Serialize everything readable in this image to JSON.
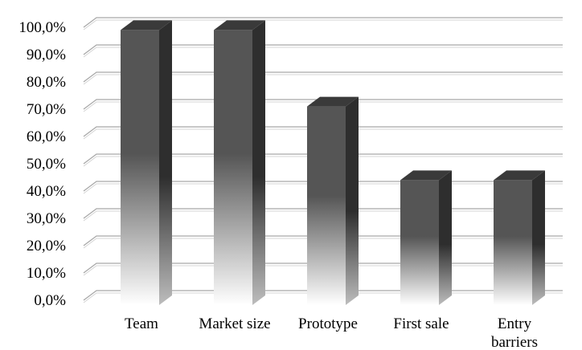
{
  "chart_data": {
    "type": "bar",
    "title": "",
    "xlabel": "",
    "ylabel": "",
    "categories": [
      [
        "Team"
      ],
      [
        "Market size"
      ],
      [
        "Prototype"
      ],
      [
        "First sale"
      ],
      [
        "Entry",
        "barriers"
      ]
    ],
    "values": [
      99.0,
      99.0,
      71.0,
      44.0,
      44.0
    ],
    "ylim": [
      0,
      100
    ],
    "y_ticks": [
      "0,0%",
      "10,0%",
      "20,0%",
      "30,0%",
      "40,0%",
      "50,0%",
      "60,0%",
      "70,0%",
      "80,0%",
      "90,0%",
      "100,0%"
    ],
    "grid": true,
    "style": "3d-column-gradient",
    "colors": {
      "bar_front": "#555555",
      "bar_side": "#2e2e2e",
      "bar_top": "#3a3a3a",
      "bar_fade": "#ffffff",
      "grid": "#a6a6a6"
    }
  }
}
